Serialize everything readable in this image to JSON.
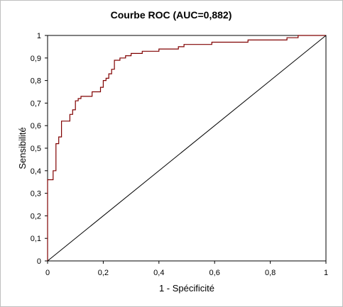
{
  "chart_data": {
    "type": "line",
    "title": "Courbe ROC (AUC=0,882)",
    "xlabel": "1 - Spécificité",
    "ylabel": "Sensibilité",
    "xlim": [
      0,
      1
    ],
    "ylim": [
      0,
      1
    ],
    "x_ticks": [
      "0",
      "0,2",
      "0,4",
      "0,6",
      "0,8",
      "1"
    ],
    "y_ticks": [
      "0",
      "0,1",
      "0,2",
      "0,3",
      "0,4",
      "0,5",
      "0,6",
      "0,7",
      "0,8",
      "0,9",
      "1"
    ],
    "grid": false,
    "series": [
      {
        "color": "#800000",
        "x": [
          0,
          0,
          0.02,
          0.02,
          0.03,
          0.03,
          0.04,
          0.04,
          0.05,
          0.05,
          0.08,
          0.08,
          0.09,
          0.09,
          0.1,
          0.1,
          0.11,
          0.11,
          0.12,
          0.12,
          0.16,
          0.16,
          0.19,
          0.19,
          0.2,
          0.2,
          0.21,
          0.21,
          0.22,
          0.22,
          0.23,
          0.23,
          0.24,
          0.24,
          0.26,
          0.26,
          0.28,
          0.28,
          0.3,
          0.3,
          0.34,
          0.34,
          0.4,
          0.4,
          0.47,
          0.47,
          0.49,
          0.49,
          0.59,
          0.59,
          0.72,
          0.72,
          0.86,
          0.86,
          0.9,
          0.9,
          1
        ],
        "y": [
          0,
          0.36,
          0.36,
          0.4,
          0.4,
          0.52,
          0.52,
          0.55,
          0.55,
          0.62,
          0.62,
          0.65,
          0.65,
          0.67,
          0.67,
          0.71,
          0.71,
          0.72,
          0.72,
          0.73,
          0.73,
          0.75,
          0.75,
          0.77,
          0.77,
          0.8,
          0.8,
          0.81,
          0.81,
          0.83,
          0.83,
          0.85,
          0.85,
          0.89,
          0.89,
          0.9,
          0.9,
          0.91,
          0.91,
          0.92,
          0.92,
          0.93,
          0.93,
          0.94,
          0.94,
          0.95,
          0.95,
          0.96,
          0.96,
          0.97,
          0.97,
          0.98,
          0.98,
          0.99,
          0.99,
          1,
          1
        ]
      },
      {
        "color": "#000000",
        "x": [
          0,
          1
        ],
        "y": [
          0,
          1
        ]
      }
    ]
  }
}
